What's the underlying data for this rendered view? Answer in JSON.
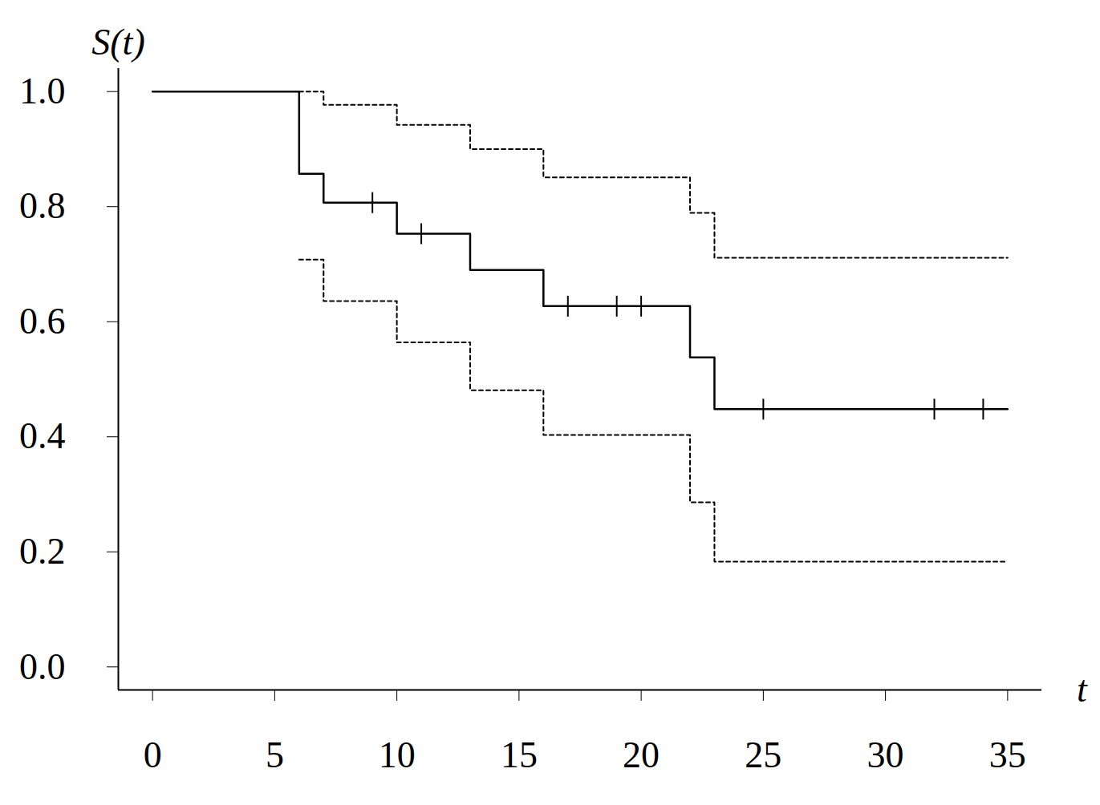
{
  "chart_data": {
    "type": "line",
    "x_label": "t",
    "y_label": "S(t)",
    "xlim": [
      -1.4,
      36.4
    ],
    "ylim": [
      -0.04,
      1.04
    ],
    "xticks": [
      0,
      5,
      10,
      15,
      20,
      25,
      30,
      35
    ],
    "yticks": [
      {
        "value": 0,
        "label": "0.0"
      },
      0.2,
      0.4,
      0.6,
      0.8,
      {
        "value": 1,
        "label": "1.0"
      }
    ],
    "grid": false,
    "series": [
      {
        "type": "line",
        "line_style": "solid",
        "color": "#000000",
        "x": [
          0,
          6,
          7,
          10,
          13,
          16,
          22,
          23,
          35
        ],
        "values": [
          1.0,
          0.857,
          0.807,
          0.753,
          0.69,
          0.627,
          0.538,
          0.448,
          0.448
        ]
      },
      {
        "type": "line",
        "line_style": "dashed",
        "color": "#000000",
        "x": [
          6,
          7,
          10,
          13,
          16,
          22,
          23,
          35
        ],
        "values": [
          1.0,
          0.977,
          0.942,
          0.9,
          0.851,
          0.789,
          0.711,
          0.711
        ]
      },
      {
        "type": "line",
        "line_style": "dashed",
        "color": "#000000",
        "x": [
          6,
          7,
          10,
          13,
          16,
          22,
          23,
          35
        ],
        "values": [
          0.708,
          0.636,
          0.564,
          0.481,
          0.403,
          0.286,
          0.183,
          0.183
        ]
      },
      {
        "type": "scatter",
        "marker": "vline",
        "color": "#000000",
        "x": [
          9,
          11,
          17,
          19,
          20,
          25,
          32,
          34
        ],
        "values": [
          0.807,
          0.753,
          0.627,
          0.627,
          0.627,
          0.448,
          0.448,
          0.448
        ]
      }
    ]
  }
}
